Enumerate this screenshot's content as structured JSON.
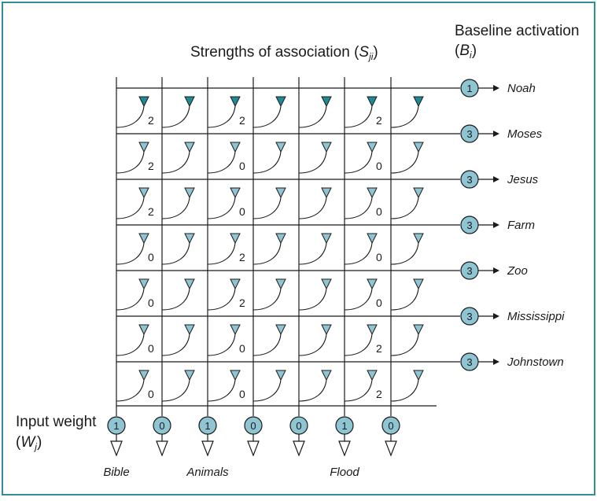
{
  "title_main": "Strengths of association (",
  "title_sym": "S",
  "title_sub": "ji",
  "title_close": ")",
  "baseline_title": "Baseline activation",
  "baseline_sym_open": "(",
  "baseline_sym": "B",
  "baseline_sub": "i",
  "baseline_sym_close": ")",
  "input_title": "Input weight",
  "input_sym_open": "(",
  "input_sym": "W",
  "input_sub": "j",
  "input_sym_close": ")",
  "rows": [
    {
      "label": "Noah",
      "baseline": "1",
      "strengths": [
        "2",
        "",
        "2",
        "",
        "",
        "2",
        ""
      ]
    },
    {
      "label": "Moses",
      "baseline": "3",
      "strengths": [
        "2",
        "",
        "0",
        "",
        "",
        "0",
        ""
      ]
    },
    {
      "label": "Jesus",
      "baseline": "3",
      "strengths": [
        "2",
        "",
        "0",
        "",
        "",
        "0",
        ""
      ]
    },
    {
      "label": "Farm",
      "baseline": "3",
      "strengths": [
        "0",
        "",
        "2",
        "",
        "",
        "0",
        ""
      ]
    },
    {
      "label": "Zoo",
      "baseline": "3",
      "strengths": [
        "0",
        "",
        "2",
        "",
        "",
        "0",
        ""
      ]
    },
    {
      "label": "Mississippi",
      "baseline": "3",
      "strengths": [
        "0",
        "",
        "0",
        "",
        "",
        "2",
        ""
      ]
    },
    {
      "label": "Johnstown",
      "baseline": "3",
      "strengths": [
        "0",
        "",
        "0",
        "",
        "",
        "2",
        ""
      ]
    }
  ],
  "columns": [
    {
      "weight": "1",
      "label": "Bible"
    },
    {
      "weight": "0",
      "label": ""
    },
    {
      "weight": "1",
      "label": "Animals"
    },
    {
      "weight": "0",
      "label": ""
    },
    {
      "weight": "0",
      "label": ""
    },
    {
      "weight": "1",
      "label": "Flood"
    },
    {
      "weight": "0",
      "label": ""
    }
  ],
  "colors": {
    "border": "#2e8f9a",
    "node_fill": "#8fc4d3",
    "active_fill": "#1e8a96",
    "line": "#1a1a1a"
  }
}
